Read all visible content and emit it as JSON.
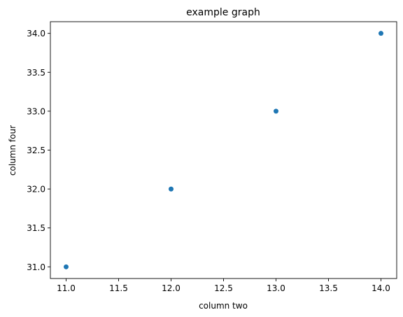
{
  "chart_data": {
    "type": "scatter",
    "title": "example graph",
    "xlabel": "column two",
    "ylabel": "column four",
    "xlim": [
      10.85,
      14.15
    ],
    "ylim": [
      30.85,
      34.15
    ],
    "xticks": [
      11.0,
      11.5,
      12.0,
      12.5,
      13.0,
      13.5,
      14.0
    ],
    "yticks": [
      31.0,
      31.5,
      32.0,
      32.5,
      33.0,
      33.5,
      34.0
    ],
    "grid": false,
    "colors": {
      "marker": "#1f77b4",
      "axis": "#000000"
    },
    "series": [
      {
        "x": [
          11,
          12,
          13,
          14
        ],
        "y": [
          31,
          32,
          33,
          34
        ]
      }
    ]
  }
}
